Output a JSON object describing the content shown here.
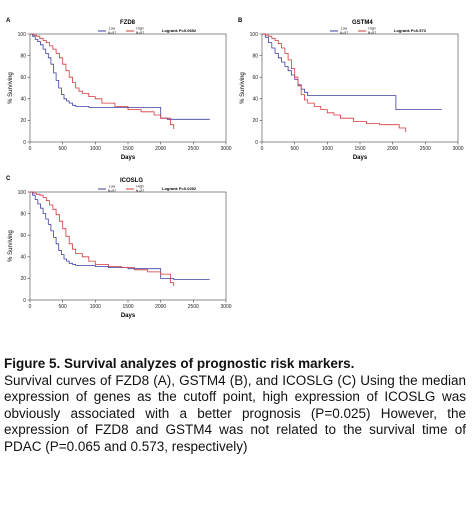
{
  "chart_data": [
    {
      "panel_letter": "A",
      "type": "line",
      "title": "FZD8",
      "xlabel": "Days",
      "ylabel": "% Surviving",
      "xlim": [
        0,
        3000
      ],
      "ylim": [
        0,
        100
      ],
      "xticks": [
        0,
        500,
        1000,
        1500,
        2000,
        2500,
        3000
      ],
      "yticks": [
        0,
        20,
        40,
        60,
        80,
        100
      ],
      "logrank": "Logrank P=0.0652",
      "legend_position": "top",
      "series": [
        {
          "name": "Low",
          "n_label": "N=87",
          "color": "#3b3fa3",
          "x": [
            0,
            40,
            80,
            120,
            160,
            200,
            240,
            280,
            320,
            360,
            400,
            440,
            480,
            520,
            560,
            600,
            650,
            700,
            800,
            900,
            1000,
            1200,
            1500,
            1700,
            2000,
            2100,
            2200,
            2750
          ],
          "y": [
            100,
            98,
            95,
            93,
            90,
            86,
            82,
            78,
            72,
            64,
            57,
            50,
            44,
            40,
            38,
            36,
            34,
            33,
            33,
            32,
            32,
            32,
            32,
            32,
            22,
            21,
            21,
            21
          ]
        },
        {
          "name": "High",
          "n_label": "N=87",
          "color": "#d2393c",
          "x": [
            0,
            50,
            100,
            150,
            200,
            250,
            300,
            350,
            400,
            450,
            500,
            550,
            600,
            650,
            700,
            750,
            800,
            900,
            1000,
            1100,
            1300,
            1500,
            1700,
            1900,
            2000,
            2150,
            2200
          ],
          "y": [
            100,
            99,
            98,
            96,
            94,
            92,
            89,
            86,
            82,
            78,
            72,
            66,
            60,
            55,
            50,
            47,
            45,
            42,
            40,
            36,
            33,
            30,
            28,
            25,
            22,
            16,
            12
          ]
        }
      ]
    },
    {
      "panel_letter": "B",
      "type": "line",
      "title": "GSTM4",
      "xlabel": "Days",
      "ylabel": "% Surviving",
      "xlim": [
        0,
        3000
      ],
      "ylim": [
        0,
        100
      ],
      "xticks": [
        0,
        500,
        1000,
        1500,
        2000,
        2500,
        3000
      ],
      "yticks": [
        0,
        20,
        40,
        60,
        80,
        100
      ],
      "logrank": "Logrank P=0.573",
      "legend_position": "top",
      "series": [
        {
          "name": "Low",
          "n_label": "N=87",
          "color": "#3b3fa3",
          "x": [
            0,
            50,
            100,
            150,
            200,
            250,
            300,
            350,
            400,
            450,
            500,
            550,
            600,
            650,
            700,
            800,
            1000,
            1200,
            1500,
            1800,
            2000,
            2050,
            2200,
            2750
          ],
          "y": [
            100,
            97,
            92,
            87,
            82,
            78,
            74,
            70,
            66,
            62,
            58,
            53,
            49,
            46,
            43,
            43,
            43,
            43,
            43,
            43,
            43,
            30,
            30,
            30
          ]
        },
        {
          "name": "High",
          "n_label": "N=87",
          "color": "#d2393c",
          "x": [
            0,
            50,
            100,
            150,
            200,
            250,
            300,
            350,
            400,
            450,
            500,
            550,
            600,
            650,
            700,
            800,
            900,
            1000,
            1100,
            1200,
            1400,
            1600,
            1800,
            2000,
            2100,
            2200
          ],
          "y": [
            100,
            99,
            98,
            96,
            94,
            91,
            87,
            82,
            76,
            68,
            60,
            52,
            44,
            39,
            36,
            33,
            30,
            27,
            25,
            22,
            19,
            17,
            16,
            16,
            13,
            9
          ]
        }
      ]
    },
    {
      "panel_letter": "C",
      "type": "line",
      "title": "ICOSLG",
      "xlabel": "Days",
      "ylabel": "% Surviving",
      "xlim": [
        0,
        3000
      ],
      "ylim": [
        0,
        100
      ],
      "xticks": [
        0,
        500,
        1000,
        1500,
        2000,
        2500,
        3000
      ],
      "yticks": [
        0,
        20,
        40,
        60,
        80,
        100
      ],
      "logrank": "Logrank P=0.0252",
      "legend_position": "top",
      "series": [
        {
          "name": "Low",
          "n_label": "N=87",
          "color": "#3b3fa3",
          "x": [
            0,
            40,
            80,
            120,
            160,
            200,
            240,
            280,
            320,
            360,
            400,
            440,
            480,
            520,
            560,
            600,
            650,
            700,
            800,
            1000,
            1200,
            1500,
            1700,
            2000,
            2100,
            2200,
            2750
          ],
          "y": [
            100,
            97,
            93,
            89,
            85,
            80,
            75,
            70,
            64,
            58,
            52,
            46,
            42,
            38,
            36,
            34,
            33,
            32,
            32,
            31,
            30,
            29,
            29,
            20,
            20,
            19,
            19
          ]
        },
        {
          "name": "High",
          "n_label": "N=87",
          "color": "#d2393c",
          "x": [
            0,
            50,
            100,
            150,
            200,
            250,
            300,
            350,
            400,
            450,
            500,
            550,
            600,
            650,
            700,
            800,
            900,
            1000,
            1200,
            1400,
            1600,
            1800,
            2000,
            2150,
            2200
          ],
          "y": [
            100,
            99,
            98,
            97,
            95,
            92,
            88,
            84,
            79,
            73,
            66,
            59,
            52,
            47,
            43,
            40,
            36,
            33,
            31,
            30,
            28,
            26,
            24,
            16,
            13
          ]
        }
      ]
    }
  ],
  "caption": {
    "title": "Figure 5. Survival analyzes of prognostic risk markers.",
    "body": "Survival curves of FZD8 (A), GSTM4 (B), and ICOSLG (C) Using the median expression of genes as the cutoff point, high expression of ICOSLG was obviously associated with a better prognosis (P=0.025) However, the expression of FZD8 and GSTM4 was not related to the survival time of PDAC (P=0.065 and 0.573, respectively)"
  }
}
